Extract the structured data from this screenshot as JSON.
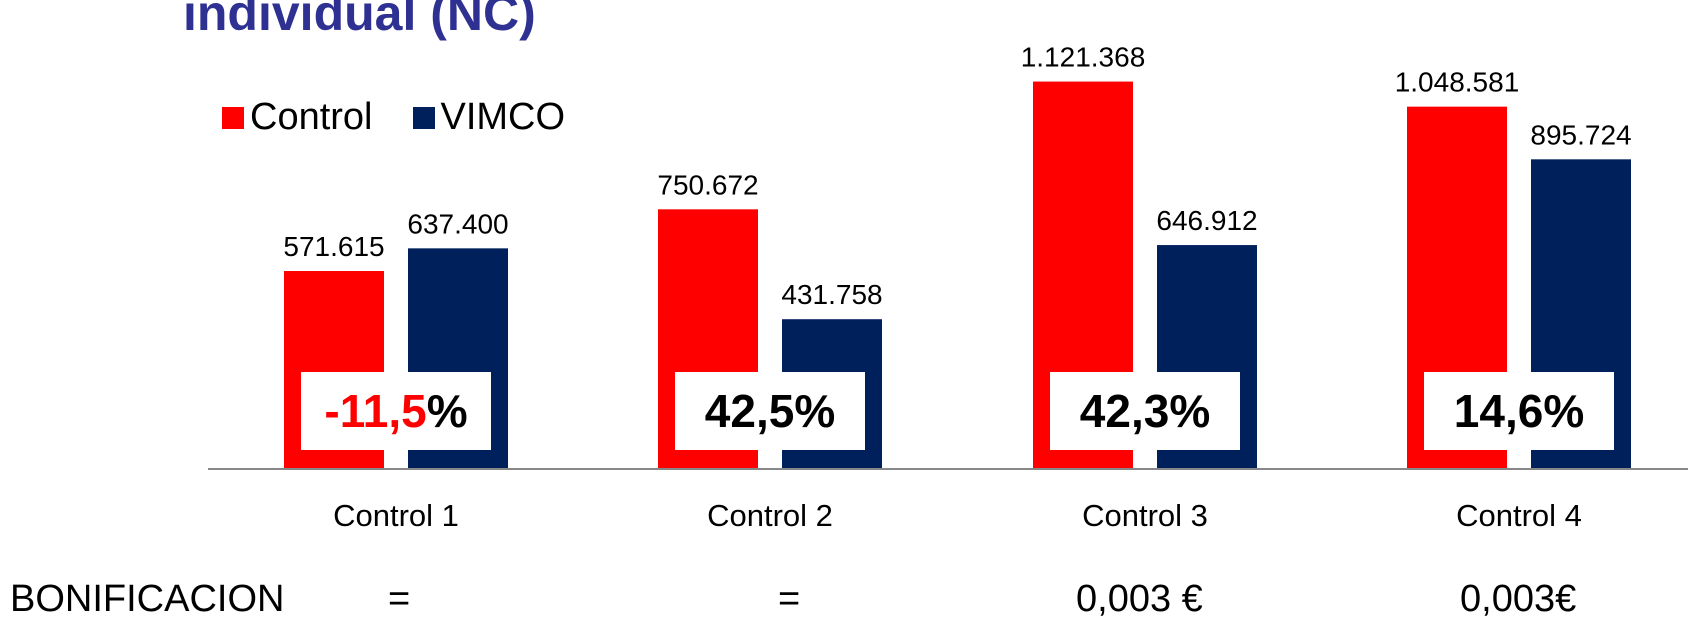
{
  "title": "individual (NC)",
  "colors": {
    "control": "#ff0000",
    "vimco": "#00205b",
    "axis": "#888888",
    "negative": "#ff0000"
  },
  "chart_data": {
    "type": "bar",
    "categories": [
      "Control 1",
      "Control 2",
      "Control 3",
      "Control 4"
    ],
    "series": [
      {
        "name": "Control",
        "values": [
          571615,
          750672,
          1121368,
          1048581
        ],
        "labels": [
          "571.615",
          "750.672",
          "1.121.368",
          "1.048.581"
        ]
      },
      {
        "name": "VIMCO",
        "values": [
          637400,
          431758,
          646912,
          895724
        ],
        "labels": [
          "637.400",
          "431.758",
          "646.912",
          "895.724"
        ]
      }
    ],
    "ylim": [
      0,
      1300000
    ],
    "grid": false,
    "legend": "top-left",
    "annotations": [
      {
        "number": "-11,5",
        "suffix": "%",
        "negative": true
      },
      {
        "number": "42,5",
        "suffix": "%",
        "negative": false
      },
      {
        "number": "42,3",
        "suffix": "%",
        "negative": false
      },
      {
        "number": "14,6",
        "suffix": "%",
        "negative": false
      }
    ]
  },
  "bonificacion": {
    "label": "BONIFICACION",
    "values": [
      "=",
      "=",
      "0,003 €",
      "0,003€"
    ]
  }
}
